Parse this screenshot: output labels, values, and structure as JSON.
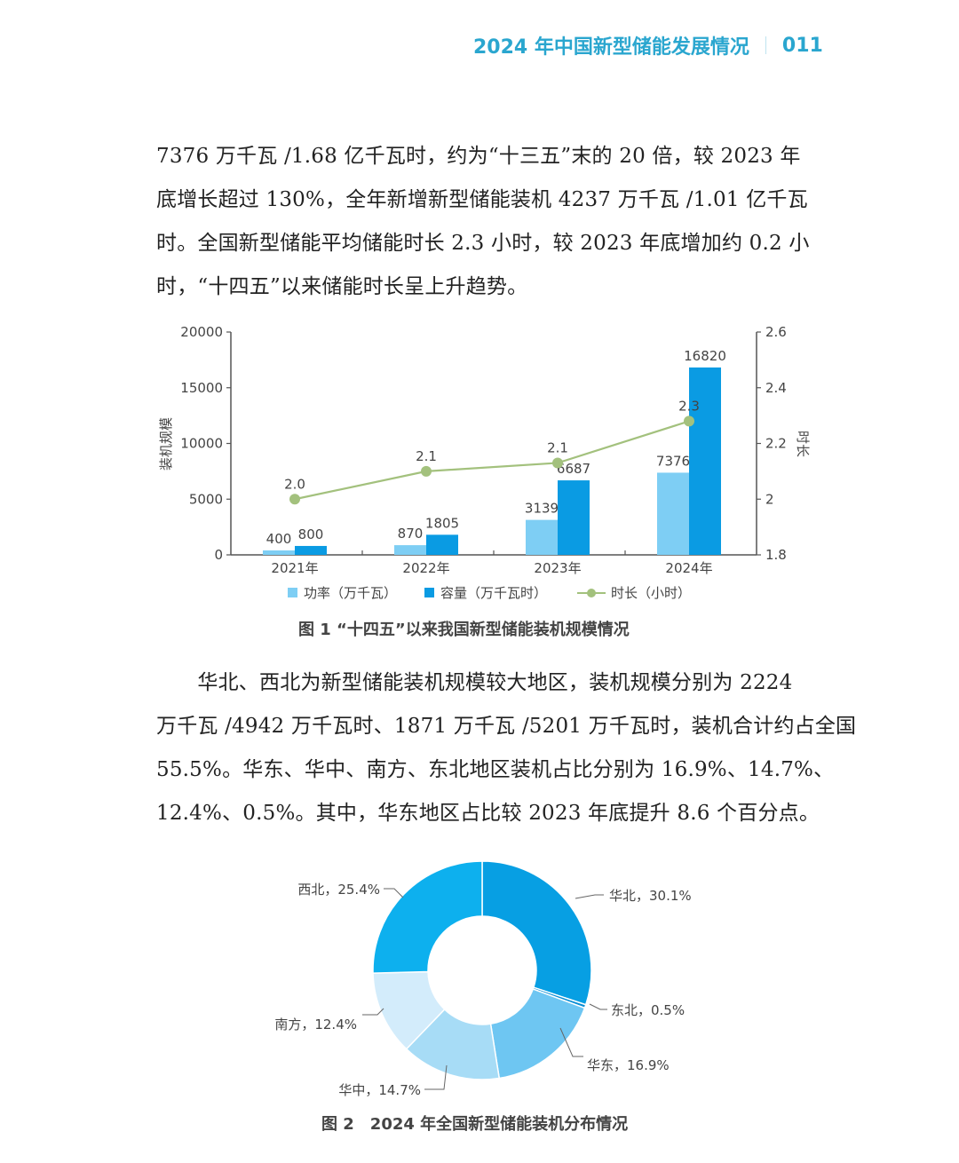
{
  "header": {
    "title": "2024 年中国新型储能发展情况",
    "page_number": "011",
    "color": "#2aa6cf"
  },
  "paragraph1": {
    "lines": [
      "7376 万千瓦 /1.68 亿千瓦时，约为“十三五”末的 20 倍，较 2023 年",
      "底增长超过 130%，全年新增新型储能装机 4237 万千瓦 /1.01 亿千瓦",
      "时。全国新型储能平均储能时长 2.3 小时，较 2023 年底增加约 0.2 小",
      "时，“十四五”以来储能时长呈上升趋势。"
    ]
  },
  "figure1": {
    "caption": "图 1 “十四五”以来我国新型储能装机规模情况"
  },
  "paragraph2": {
    "lines": [
      "　　华北、西北为新型储能装机规模较大地区，装机规模分别为 2224",
      "万千瓦 /4942 万千瓦时、1871 万千瓦 /5201 万千瓦时，装机合计约占全国",
      "55.5%。华东、华中、南方、东北地区装机占比分别为 16.9%、14.7%、",
      "12.4%、0.5%。其中，华东地区占比较 2023 年底提升 8.6 个百分点。"
    ]
  },
  "figure2": {
    "caption": "图 2　2024 年全国新型储能装机分布情况"
  },
  "chart_data": [
    {
      "type": "bar",
      "title": "图 1 “十四五”以来我国新型储能装机规模情况",
      "categories": [
        "2021年",
        "2022年",
        "2023年",
        "2024年"
      ],
      "series": [
        {
          "name": "功率（万千瓦）",
          "type": "bar",
          "axis": "left",
          "color": "#7ecef4",
          "values": [
            400,
            870,
            3139,
            7376
          ],
          "labels": [
            "400",
            "870",
            "3139",
            "7376"
          ]
        },
        {
          "name": "容量（万千瓦时）",
          "type": "bar",
          "axis": "left",
          "color": "#0a9be3",
          "values": [
            800,
            1805,
            6687,
            16820
          ],
          "labels": [
            "800",
            "1805",
            "6687",
            "16820"
          ]
        },
        {
          "name": "时长（小时）",
          "type": "line",
          "axis": "right",
          "color": "#a3c17d",
          "values": [
            2.0,
            2.1,
            2.1,
            2.3
          ],
          "labels": [
            "2.0",
            "2.1",
            "2.1",
            "2.3"
          ]
        }
      ],
      "ylabel": "装机规模",
      "ylabel_right": "时长",
      "ylim": [
        0,
        20000
      ],
      "ylim_right": [
        1.8,
        2.6
      ],
      "yticks": [
        "0",
        "5000",
        "10000",
        "15000",
        "20000"
      ],
      "yticks_right": [
        "1.8",
        "2",
        "2.2",
        "2.4",
        "2.6"
      ],
      "legend": [
        "功率（万千瓦）",
        "容量（万千瓦时）",
        "时长（小时）"
      ],
      "legend_position": "bottom",
      "grid": false
    },
    {
      "type": "pie",
      "donut": true,
      "title": "图 2 2024 年全国新型储能装机分布情况",
      "categories": [
        "华北",
        "东北",
        "华东",
        "华中",
        "南方",
        "西北"
      ],
      "values": [
        30.1,
        0.5,
        16.9,
        14.7,
        12.4,
        25.4
      ],
      "labels": [
        "华北，30.1%",
        "东北，0.5%",
        "华东，16.9%",
        "华中，14.7%",
        "南方，12.4%",
        "西北，25.4%"
      ],
      "colors": [
        "#079fe3",
        "#0a8fd6",
        "#6ec6f2",
        "#a7dcf6",
        "#d3ecfb",
        "#0db0ee"
      ]
    }
  ]
}
